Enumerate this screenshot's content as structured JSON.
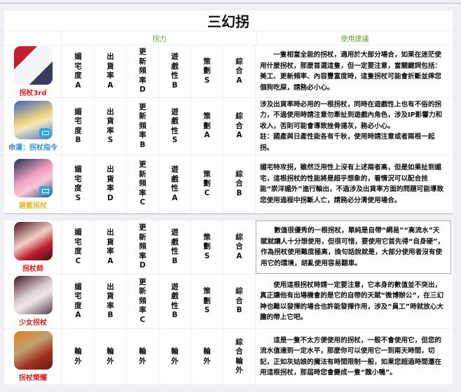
{
  "title": "三幻拐",
  "header": {
    "col_power": "拐力",
    "col_advice": "使用建議"
  },
  "rows": [
    {
      "name": "拐杖3rd",
      "name_color": "#e02020",
      "icon": "honkai-impact-3rd-icon",
      "ratings": [
        "媚宅度A",
        "出貨率A",
        "更新頻率D",
        "遊戲性B",
        "策劃S",
        "綜合A"
      ],
      "advice": [
        "一隻相當全能的拐杖，適用於大部分場合，如果在迷茫使用什麼拐杖，那麼首選這隻，但一定要注意，當關鍵詞包括：美工、更新頻率、內容豐富度時，這隻拐杖可能會折斷並摔您個狗吃屎，請務必小心。"
      ]
    },
    {
      "name": "命運：拐杖指令",
      "name_color": "#3a8fd0",
      "icon": "fate-grand-order-icon",
      "ratings": [
        "媚宅度B",
        "出貨率S",
        "更新頻率B",
        "遊戲性S",
        "策劃A",
        "綜合A"
      ],
      "advice": [
        "涉及出貨率時必用的一根拐杖，同時在遊戲性上也有不俗的拐力，不過使用時請注意勿牽扯到遊戲內角色，涉及IP影響力和收入，否則可能會導致挫骨揚灰，務必小心。",
        "註：國產與日產性能各有千秋，使用時請注意或者兩根一起拐。"
      ]
    },
    {
      "name": "碧藍拐杖",
      "name_color": "#e8b820",
      "icon": "azur-lane-icon",
      "ratings": [
        "媚宅度S",
        "出貨率D",
        "更新頻率C",
        "遊戲性A",
        "策劃C",
        "綜合B"
      ],
      "advice": [
        "媚宅特攻拐，雖然泛用性上沒有上述兩者高，但是如果扯到媚宅，這根拐杖的性能將是超乎想象的，看情況可以配合技能“崇洋媚外”進行輸出，不過涉及出貨率方面的問題可能導致您使用過程中拐斷人亡，請務必分清使用場合。"
      ]
    },
    {
      "name": "拐杖師",
      "name_color": "#e02020",
      "icon": "onmyoji-icon",
      "ratings": [
        "媚宅度C",
        "出貨率A",
        "更新頻率D",
        "遊戲性B",
        "策劃S",
        "綜合A"
      ],
      "advice": [
        "數值很優秀的一根拐杖，單純是自帶“網易”“高流水”天賦就讓人十分想使用，但很可惜，要使用它首先得“自身硬”，作為拐杖使用難度極高，換句話說就是，大部分使用者沒有使用它的環境，胡亂使用容易翻車。"
      ]
    },
    {
      "name": "少女拐杖",
      "name_color": "#e02020",
      "icon": "girls-game-icon",
      "ratings": [
        "媚宅度A",
        "出貨率B",
        "更新頻率C",
        "遊戲性B",
        "策劃S",
        "綜合B"
      ],
      "advice": [
        "使用這根拐杖時請一定要注意，它本身的數值並不突出，真正讓他有出場機會的是它的自帶的天賦“微博辦公”，在三幻神也難以發揮的場合也許能發揮作用，涉及“員工”時就放心大膽的帶上它吧。"
      ]
    },
    {
      "name": "拐杖榮耀",
      "name_color": "#e02020",
      "icon": "honor-of-kings-icon",
      "ratings": [
        "輪外",
        "輪外",
        "輪外",
        "輪外",
        "輪外",
        "綜合輪外"
      ],
      "advice": [
        "這是一隻不太方便使用的拐杖，一般不會使用它，但您的流水值達到一定水平，那麼你可以使用它一到兩天時間，切記，正如灰姑娘的魔法有時間限制一般，如果您超過時間還在用這根拐杖，那屆時您會變成一隻“醜小鴨”。"
      ]
    }
  ]
}
